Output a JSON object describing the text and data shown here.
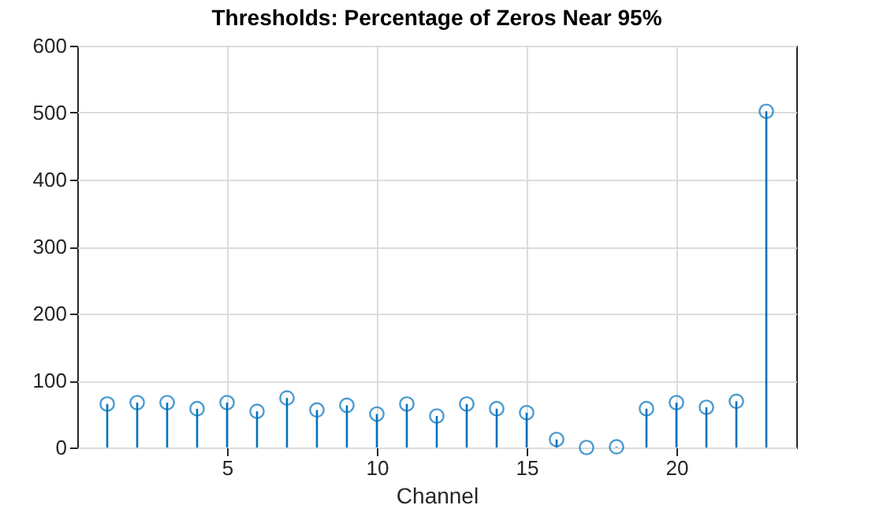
{
  "chart_data": {
    "type": "lollipop",
    "title": "Thresholds: Percentage of Zeros Near 95%",
    "xlabel": "Channel",
    "x": [
      1,
      2,
      3,
      4,
      5,
      6,
      7,
      8,
      9,
      10,
      11,
      12,
      13,
      14,
      15,
      16,
      17,
      18,
      19,
      20,
      21,
      22,
      23
    ],
    "values": [
      65,
      67,
      67,
      58,
      67,
      54,
      74,
      56,
      63,
      50,
      65,
      47,
      65,
      58,
      52,
      12,
      0,
      1,
      58,
      67,
      60,
      69,
      502
    ],
    "color": "#0072bd",
    "marker": "circle",
    "xlim": [
      0,
      24
    ],
    "xticks": [
      5,
      10,
      15,
      20
    ],
    "ylim": [
      0,
      600
    ],
    "yticks": [
      0,
      100,
      200,
      300,
      400,
      500,
      600
    ],
    "grid": true
  }
}
